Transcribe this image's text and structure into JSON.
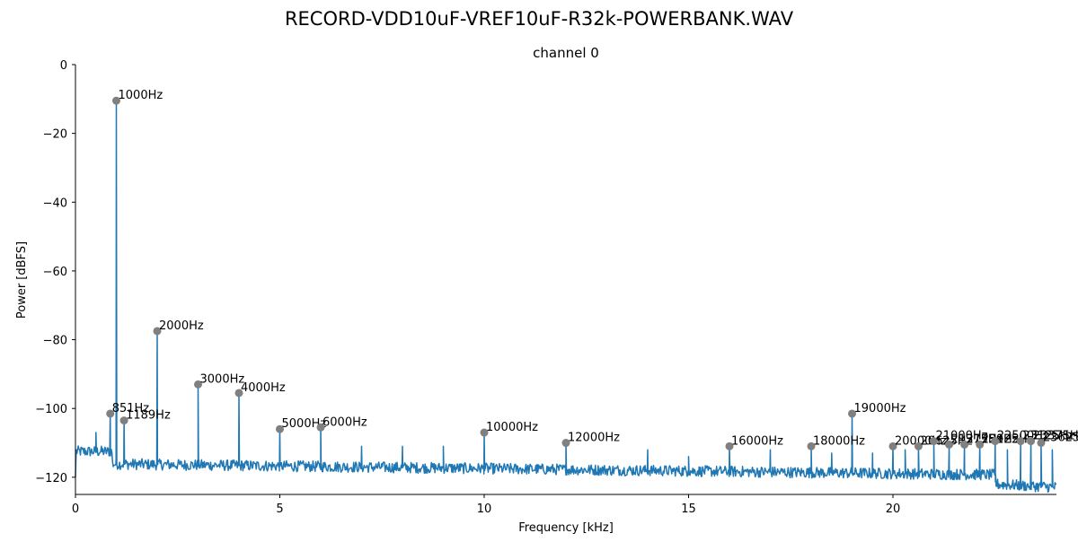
{
  "figure": {
    "suptitle": "RECORD-VDD10uF-VREF10uF-R32k-POWERBANK.WAV"
  },
  "chart_data": {
    "type": "line",
    "title": "channel 0",
    "xlabel": "Frequency [kHz]",
    "ylabel": "Power [dBFS]",
    "xlim": [
      0,
      24
    ],
    "ylim": [
      -125,
      0
    ],
    "xticks": [
      0,
      5,
      10,
      15,
      20
    ],
    "yticks": [
      0,
      -20,
      -40,
      -60,
      -80,
      -100,
      -120
    ],
    "xtick_labels": [
      "0",
      "5",
      "10",
      "15",
      "20"
    ],
    "ytick_labels": [
      "0",
      "−20",
      "−40",
      "−60",
      "−80",
      "−100",
      "−120"
    ],
    "grid": false,
    "line_color": "#1f77b4",
    "marker_color": "#808080",
    "noise_floor": {
      "start_db": -111,
      "end_db": -122
    },
    "spurs": [
      {
        "x": 0.5,
        "y": -107
      },
      {
        "x": 7.0,
        "y": -111
      },
      {
        "x": 8.0,
        "y": -111
      },
      {
        "x": 9.0,
        "y": -111
      },
      {
        "x": 14.0,
        "y": -112
      },
      {
        "x": 15.0,
        "y": -114
      },
      {
        "x": 17.0,
        "y": -112
      },
      {
        "x": 18.5,
        "y": -113
      },
      {
        "x": 19.5,
        "y": -113
      },
      {
        "x": 20.3,
        "y": -112
      },
      {
        "x": 22.8,
        "y": -112
      },
      {
        "x": 23.9,
        "y": -112
      }
    ],
    "peaks": [
      {
        "x": 0.851,
        "y": -101.5,
        "label": "851Hz"
      },
      {
        "x": 1.0,
        "y": -10.5,
        "label": "1000Hz"
      },
      {
        "x": 1.189,
        "y": -103.5,
        "label": "1189Hz"
      },
      {
        "x": 2.0,
        "y": -77.5,
        "label": "2000Hz"
      },
      {
        "x": 3.0,
        "y": -93.0,
        "label": "3000Hz"
      },
      {
        "x": 4.0,
        "y": -95.5,
        "label": "4000Hz"
      },
      {
        "x": 5.0,
        "y": -106.0,
        "label": "5000Hz"
      },
      {
        "x": 6.0,
        "y": -105.5,
        "label": "6000Hz"
      },
      {
        "x": 10.0,
        "y": -107.0,
        "label": "10000Hz"
      },
      {
        "x": 12.0,
        "y": -110.0,
        "label": "12000Hz"
      },
      {
        "x": 16.0,
        "y": -111.0,
        "label": "16000Hz"
      },
      {
        "x": 18.0,
        "y": -111.0,
        "label": "18000Hz"
      },
      {
        "x": 19.0,
        "y": -101.5,
        "label": "19000Hz"
      },
      {
        "x": 20.0,
        "y": -111.0,
        "label": "20000Hz"
      },
      {
        "x": 20.625,
        "y": -111.0,
        "label": "20625Hz"
      },
      {
        "x": 21.0,
        "y": -109.5,
        "label": "21000Hz"
      },
      {
        "x": 21.375,
        "y": -110.5,
        "label": "21375Hz"
      },
      {
        "x": 21.75,
        "y": -110.5,
        "label": "21750Hz"
      },
      {
        "x": 22.125,
        "y": -110.5,
        "label": "22125Hz"
      },
      {
        "x": 22.5,
        "y": -109.5,
        "label": "22500Hz"
      },
      {
        "x": 23.125,
        "y": -109.5,
        "label": "23125Hz"
      },
      {
        "x": 23.375,
        "y": -109.5,
        "label": "23375Hz"
      },
      {
        "x": 23.625,
        "y": -110.0,
        "label": "23625Hz"
      }
    ]
  }
}
